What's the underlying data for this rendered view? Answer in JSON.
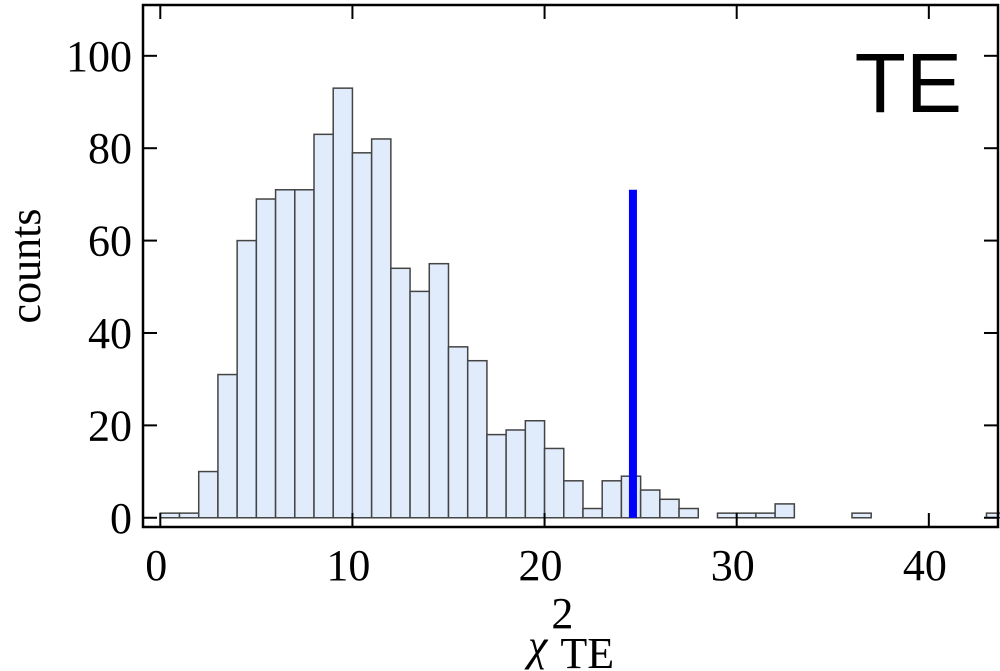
{
  "chart_data": {
    "type": "histogram",
    "annotation": "TE",
    "y_label": "counts",
    "x_label": {
      "base": "χ",
      "sup": "2",
      "sub": "TE"
    },
    "bins": [
      0,
      1,
      2,
      3,
      4,
      5,
      6,
      7,
      8,
      9,
      10,
      11,
      12,
      13,
      14,
      15,
      16,
      17,
      18,
      19,
      20,
      21,
      22,
      23,
      24,
      25,
      26,
      27,
      28,
      29,
      30,
      31,
      32,
      33,
      34,
      35,
      36,
      37,
      38,
      39,
      40,
      41,
      42,
      43,
      44
    ],
    "values": [
      1,
      1,
      10,
      31,
      60,
      69,
      71,
      71,
      83,
      93,
      79,
      82,
      54,
      49,
      55,
      37,
      34,
      18,
      19,
      21,
      15,
      8,
      2,
      8,
      9,
      6,
      4,
      2,
      0,
      1,
      1,
      1,
      3,
      0,
      0,
      0,
      1,
      0,
      0,
      0,
      0,
      0,
      0,
      1
    ],
    "color": "#e0ecfb",
    "xlim": [
      -0.9,
      43.6
    ],
    "ylim": [
      -2,
      111
    ],
    "xticks": [
      0,
      10,
      20,
      30,
      40
    ],
    "yticks": [
      0,
      20,
      40,
      60,
      80,
      100
    ],
    "vline": {
      "x": 24.6,
      "y": [
        0,
        71
      ],
      "color": "#0000ff"
    }
  }
}
